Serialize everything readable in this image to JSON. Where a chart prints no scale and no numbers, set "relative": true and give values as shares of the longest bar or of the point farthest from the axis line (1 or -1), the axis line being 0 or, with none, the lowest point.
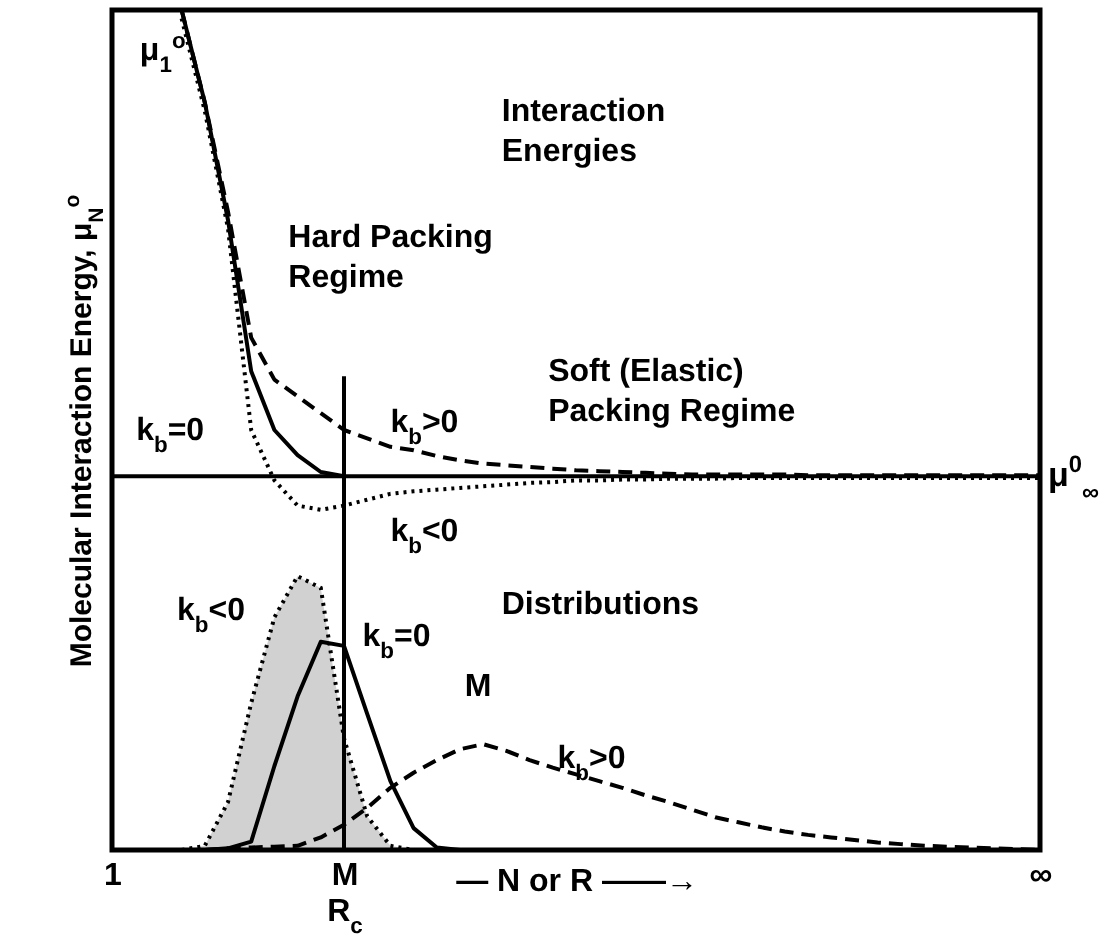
{
  "chart_data": {
    "type": "line",
    "relative": true,
    "xlabel": "— N or R ——→",
    "ylabel": "Molecular Interaction Energy, μ$_{N}$$^{o}$",
    "categories": [
      "1",
      null,
      null,
      null,
      null,
      null,
      null,
      null,
      null,
      null,
      "M R$_{c}$",
      null,
      null,
      null,
      null,
      null,
      null,
      null,
      null,
      null,
      null,
      null,
      null,
      null,
      null,
      null,
      null,
      null,
      null,
      null,
      null,
      null,
      null,
      null,
      null,
      null,
      null,
      null,
      null,
      null,
      "∞"
    ],
    "series": [
      {
        "line_style": "solid",
        "color": "#000000",
        "values": [
          null,
          null,
          null,
          1.0,
          0.89,
          0.75,
          0.57,
          0.5,
          0.47,
          0.45,
          0.445,
          null,
          null,
          null,
          null,
          null,
          null,
          null,
          null,
          null,
          null,
          null,
          null,
          null,
          null,
          null,
          null,
          null,
          null,
          null,
          null,
          null,
          null,
          null,
          null,
          null,
          null,
          null,
          null,
          null,
          null
        ]
      },
      {
        "line_style": "dashed",
        "color": "#000000",
        "values": [
          null,
          null,
          null,
          1.0,
          0.89,
          0.76,
          0.61,
          0.56,
          0.54,
          0.52,
          0.5,
          0.49,
          0.48,
          0.476,
          0.469,
          0.464,
          0.46,
          0.458,
          0.456,
          0.454,
          0.452,
          0.451,
          0.45,
          0.449,
          0.448,
          0.447,
          0.447,
          0.447,
          0.447,
          0.447,
          0.446,
          0.446,
          0.446,
          0.446,
          0.446,
          0.446,
          0.446,
          0.446,
          0.446,
          0.446,
          0.446
        ]
      },
      {
        "line_style": "dotted",
        "color": "#000000",
        "values": [
          null,
          null,
          null,
          0.99,
          0.88,
          0.74,
          0.5,
          0.44,
          0.41,
          0.405,
          0.41,
          0.417,
          0.424,
          0.427,
          0.429,
          0.431,
          0.433,
          0.435,
          0.437,
          0.438,
          0.44,
          0.44,
          0.441,
          0.441,
          0.442,
          0.442,
          0.442,
          0.443,
          0.443,
          0.443,
          0.443,
          0.443,
          0.443,
          0.443,
          0.443,
          0.443,
          0.443,
          0.443,
          0.443,
          0.443,
          0.443
        ]
      },
      {
        "type": "area",
        "line_style": "dotted",
        "color": "#000000",
        "values": [
          null,
          null,
          null,
          0,
          0.005,
          0.057,
          0.175,
          0.277,
          0.326,
          0.312,
          0.133,
          0.04,
          0.005,
          0,
          null,
          null,
          null,
          null,
          null,
          null,
          null,
          null,
          null,
          null,
          null,
          null,
          null,
          null,
          null,
          null,
          null,
          null,
          null,
          null,
          null,
          null,
          null,
          null,
          null,
          null,
          null
        ]
      },
      {
        "line_style": "solid",
        "color": "#000000",
        "values": [
          null,
          null,
          null,
          null,
          0,
          0.002,
          0.01,
          0.1,
          0.183,
          0.248,
          0.243,
          0.162,
          0.082,
          0.026,
          0.003,
          0,
          null,
          null,
          null,
          null,
          null,
          null,
          null,
          null,
          null,
          null,
          null,
          null,
          null,
          null,
          null,
          null,
          null,
          null,
          null,
          null,
          null,
          null,
          null,
          null,
          null
        ]
      },
      {
        "line_style": "dashed",
        "color": "#000000",
        "values": [
          null,
          null,
          null,
          null,
          0,
          0.002,
          0.003,
          0.004,
          0.005,
          0.015,
          0.03,
          0.05,
          0.074,
          0.092,
          0.107,
          0.12,
          0.126,
          0.118,
          0.107,
          0.098,
          0.09,
          0.082,
          0.074,
          0.065,
          0.057,
          0.048,
          0.039,
          0.033,
          0.027,
          0.022,
          0.018,
          0.015,
          0.012,
          0.009,
          0.007,
          0.005,
          0.004,
          0.003,
          0.002,
          0.001,
          0
        ]
      }
    ],
    "ref_lines": [
      {
        "axis": "y",
        "value": 0.445,
        "label": "μ$^{0}$$_{∞}$"
      },
      {
        "axis": "x",
        "value": "M R$_{c}$"
      }
    ],
    "annotations": [
      "μ$_{1}$$^{o}$",
      "Interaction\nEnergies",
      "Hard Packing\nRegime",
      "k$_{b}$>0",
      "Soft (Elastic)\nPacking Regime",
      "k$_{b}$=0",
      "k$_{b}$<0",
      "Distributions",
      "k$_{b}$<0",
      "k$_{b}$=0",
      "M",
      "k$_{b}$>0"
    ]
  }
}
